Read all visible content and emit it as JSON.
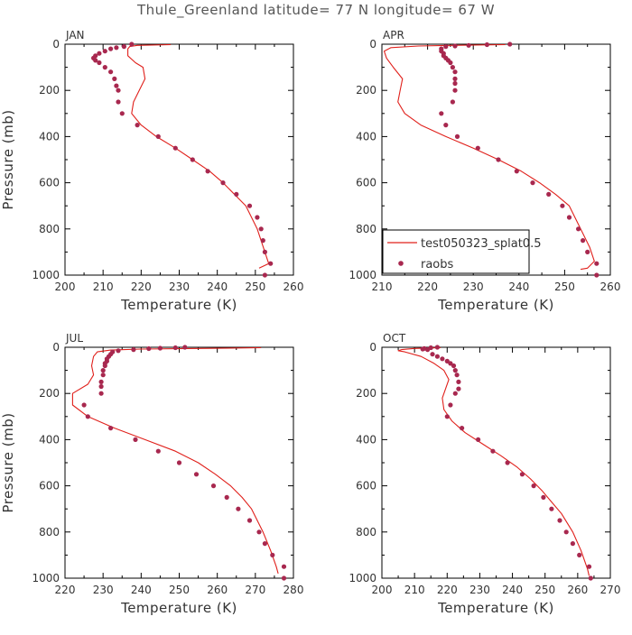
{
  "figure": {
    "title": "Thule_Greenland  latitude= 77 N longitude= 67 W"
  },
  "legend": {
    "model_label": "test050323_splat0.5",
    "obs_label": "raobs",
    "model_color": "#e0201b",
    "obs_color": "#a8284f"
  },
  "chart_data": [
    {
      "type": "line",
      "panel": "JAN",
      "xlabel": "Temperature (K)",
      "ylabel": "Pressure (mb)",
      "xlim": [
        200,
        260
      ],
      "ylim": [
        1000,
        0
      ],
      "xticks": [
        200,
        210,
        220,
        230,
        240,
        250,
        260
      ],
      "yticks": [
        0,
        200,
        400,
        600,
        800,
        1000
      ],
      "series": [
        {
          "name": "test050323_splat0.5",
          "kind": "line",
          "points": [
            [
              227.8,
              2
            ],
            [
              219,
              5
            ],
            [
              217,
              10
            ],
            [
              216.5,
              20
            ],
            [
              216.5,
              50
            ],
            [
              218.5,
              80
            ],
            [
              220.5,
              100
            ],
            [
              221,
              150
            ],
            [
              219.5,
              200
            ],
            [
              218,
              250
            ],
            [
              217.5,
              300
            ],
            [
              220,
              350
            ],
            [
              224,
              400
            ],
            [
              229,
              450
            ],
            [
              233.5,
              500
            ],
            [
              238,
              550
            ],
            [
              241.5,
              600
            ],
            [
              244.5,
              650
            ],
            [
              247.5,
              700
            ],
            [
              250.5,
              800
            ],
            [
              252.5,
              900
            ],
            [
              253.5,
              950
            ],
            [
              251,
              970
            ]
          ]
        },
        {
          "name": "raobs",
          "kind": "scatter",
          "points": [
            [
              217.5,
              0
            ],
            [
              215.5,
              10
            ],
            [
              213.5,
              15
            ],
            [
              212,
              20
            ],
            [
              210.5,
              30
            ],
            [
              209,
              40
            ],
            [
              208,
              50
            ],
            [
              207.5,
              60
            ],
            [
              208,
              70
            ],
            [
              209,
              80
            ],
            [
              210.5,
              100
            ],
            [
              212,
              120
            ],
            [
              213,
              150
            ],
            [
              213.5,
              180
            ],
            [
              214,
              200
            ],
            [
              214,
              250
            ],
            [
              215,
              300
            ],
            [
              219,
              350
            ],
            [
              224.5,
              400
            ],
            [
              229,
              450
            ],
            [
              233.5,
              500
            ],
            [
              237.5,
              550
            ],
            [
              241.5,
              600
            ],
            [
              245,
              650
            ],
            [
              248.5,
              700
            ],
            [
              250.5,
              750
            ],
            [
              251.5,
              800
            ],
            [
              252,
              850
            ],
            [
              252.5,
              900
            ],
            [
              254,
              950
            ],
            [
              252.5,
              1000
            ]
          ]
        }
      ]
    },
    {
      "type": "line",
      "panel": "APR",
      "xlabel": "Temperature (K)",
      "ylabel": "Pressure (mb)",
      "xlim": [
        210,
        260
      ],
      "ylim": [
        1000,
        0
      ],
      "xticks": [
        210,
        220,
        230,
        240,
        250,
        260
      ],
      "yticks": [
        0,
        200,
        400,
        600,
        800,
        1000
      ],
      "series": [
        {
          "name": "test050323_splat0.5",
          "kind": "line",
          "points": [
            [
              237,
              2
            ],
            [
              225,
              5
            ],
            [
              218,
              8
            ],
            [
              212,
              15
            ],
            [
              210.5,
              30
            ],
            [
              211,
              60
            ],
            [
              212.5,
              100
            ],
            [
              214.5,
              150
            ],
            [
              214,
              200
            ],
            [
              213.5,
              250
            ],
            [
              215,
              300
            ],
            [
              218.5,
              350
            ],
            [
              224,
              400
            ],
            [
              230,
              450
            ],
            [
              235.5,
              500
            ],
            [
              240.5,
              550
            ],
            [
              244.5,
              600
            ],
            [
              248,
              650
            ],
            [
              251,
              700
            ],
            [
              253.5,
              800
            ],
            [
              255.5,
              880
            ],
            [
              256.5,
              940
            ],
            [
              255,
              970
            ],
            [
              253.5,
              975
            ]
          ]
        },
        {
          "name": "raobs",
          "kind": "scatter",
          "points": [
            [
              238,
              0
            ],
            [
              233,
              2
            ],
            [
              229,
              5
            ],
            [
              226,
              8
            ],
            [
              224,
              10
            ],
            [
              223,
              20
            ],
            [
              223,
              30
            ],
            [
              223.5,
              40
            ],
            [
              223.5,
              50
            ],
            [
              224,
              60
            ],
            [
              224.5,
              70
            ],
            [
              225,
              80
            ],
            [
              225.5,
              100
            ],
            [
              226,
              120
            ],
            [
              226,
              150
            ],
            [
              226,
              170
            ],
            [
              226,
              200
            ],
            [
              225.5,
              250
            ],
            [
              223,
              300
            ],
            [
              224,
              350
            ],
            [
              226.5,
              400
            ],
            [
              231,
              450
            ],
            [
              235.5,
              500
            ],
            [
              239.5,
              550
            ],
            [
              243,
              600
            ],
            [
              246.5,
              650
            ],
            [
              249.5,
              700
            ],
            [
              251,
              750
            ],
            [
              253,
              800
            ],
            [
              254,
              850
            ],
            [
              255,
              900
            ],
            [
              257,
              950
            ],
            [
              257,
              1000
            ]
          ]
        }
      ]
    },
    {
      "type": "line",
      "panel": "JUL",
      "xlabel": "Temperature (K)",
      "ylabel": "Pressure (mb)",
      "xlim": [
        220,
        280
      ],
      "ylim": [
        1000,
        0
      ],
      "xticks": [
        220,
        230,
        240,
        250,
        260,
        270,
        280
      ],
      "yticks": [
        0,
        200,
        400,
        600,
        800,
        1000
      ],
      "series": [
        {
          "name": "test050323_splat0.5",
          "kind": "line",
          "points": [
            [
              271.5,
              2
            ],
            [
              255,
              5
            ],
            [
              240,
              8
            ],
            [
              232,
              12
            ],
            [
              228.5,
              20
            ],
            [
              227.5,
              40
            ],
            [
              227,
              80
            ],
            [
              227.5,
              120
            ],
            [
              226,
              160
            ],
            [
              222,
              200
            ],
            [
              222,
              250
            ],
            [
              226,
              300
            ],
            [
              233,
              350
            ],
            [
              241,
              400
            ],
            [
              249,
              450
            ],
            [
              255,
              500
            ],
            [
              259.5,
              550
            ],
            [
              263.5,
              600
            ],
            [
              266.5,
              650
            ],
            [
              269,
              700
            ],
            [
              272,
              800
            ],
            [
              274,
              880
            ],
            [
              275.5,
              950
            ],
            [
              276,
              980
            ]
          ]
        },
        {
          "name": "raobs",
          "kind": "scatter",
          "points": [
            [
              251.5,
              0
            ],
            [
              249,
              2
            ],
            [
              245,
              4
            ],
            [
              242,
              6
            ],
            [
              238,
              10
            ],
            [
              234,
              15
            ],
            [
              232.5,
              20
            ],
            [
              232,
              30
            ],
            [
              231.5,
              40
            ],
            [
              231,
              50
            ],
            [
              231,
              60
            ],
            [
              230.5,
              70
            ],
            [
              230.5,
              80
            ],
            [
              230,
              100
            ],
            [
              230,
              120
            ],
            [
              229.5,
              150
            ],
            [
              229.5,
              170
            ],
            [
              229.5,
              200
            ],
            [
              225,
              250
            ],
            [
              226,
              300
            ],
            [
              232,
              350
            ],
            [
              238.5,
              400
            ],
            [
              244.5,
              450
            ],
            [
              250,
              500
            ],
            [
              254.5,
              550
            ],
            [
              259,
              600
            ],
            [
              262.5,
              650
            ],
            [
              265.5,
              700
            ],
            [
              268.5,
              750
            ],
            [
              271,
              800
            ],
            [
              272.5,
              850
            ],
            [
              274.5,
              900
            ],
            [
              277.5,
              950
            ],
            [
              277.5,
              1000
            ]
          ]
        }
      ]
    },
    {
      "type": "line",
      "panel": "OCT",
      "xlabel": "Temperature (K)",
      "ylabel": "Pressure (mb)",
      "xlim": [
        200,
        270
      ],
      "ylim": [
        1000,
        0
      ],
      "xticks": [
        200,
        210,
        220,
        230,
        240,
        250,
        260,
        270
      ],
      "yticks": [
        0,
        200,
        400,
        600,
        800,
        1000
      ],
      "series": [
        {
          "name": "test050323_splat0.5",
          "kind": "line",
          "points": [
            [
              218,
              2
            ],
            [
              210,
              5
            ],
            [
              206,
              10
            ],
            [
              205,
              15
            ],
            [
              207,
              20
            ],
            [
              212,
              40
            ],
            [
              216,
              70
            ],
            [
              219,
              100
            ],
            [
              220.5,
              140
            ],
            [
              219.5,
              180
            ],
            [
              218.5,
              220
            ],
            [
              219,
              270
            ],
            [
              221.5,
              320
            ],
            [
              225.5,
              370
            ],
            [
              231,
              420
            ],
            [
              236.5,
              470
            ],
            [
              241.5,
              520
            ],
            [
              245.5,
              570
            ],
            [
              249,
              620
            ],
            [
              252,
              670
            ],
            [
              255,
              720
            ],
            [
              258.5,
              800
            ],
            [
              261,
              880
            ],
            [
              263,
              960
            ],
            [
              263.5,
              990
            ]
          ]
        },
        {
          "name": "raobs",
          "kind": "scatter",
          "points": [
            [
              217,
              0
            ],
            [
              215,
              2
            ],
            [
              213,
              5
            ],
            [
              212.5,
              8
            ],
            [
              214,
              10
            ],
            [
              215.5,
              30
            ],
            [
              217,
              40
            ],
            [
              218.5,
              50
            ],
            [
              220,
              60
            ],
            [
              221,
              70
            ],
            [
              222,
              80
            ],
            [
              222.5,
              100
            ],
            [
              223,
              120
            ],
            [
              223.5,
              150
            ],
            [
              223.5,
              180
            ],
            [
              222.5,
              200
            ],
            [
              221,
              250
            ],
            [
              220,
              300
            ],
            [
              224.5,
              350
            ],
            [
              229.5,
              400
            ],
            [
              234,
              450
            ],
            [
              238.5,
              500
            ],
            [
              243,
              550
            ],
            [
              246.5,
              600
            ],
            [
              249.5,
              650
            ],
            [
              252,
              700
            ],
            [
              254.5,
              750
            ],
            [
              256.5,
              800
            ],
            [
              258.5,
              850
            ],
            [
              260.5,
              900
            ],
            [
              263.5,
              950
            ],
            [
              264,
              1000
            ]
          ]
        }
      ]
    }
  ]
}
